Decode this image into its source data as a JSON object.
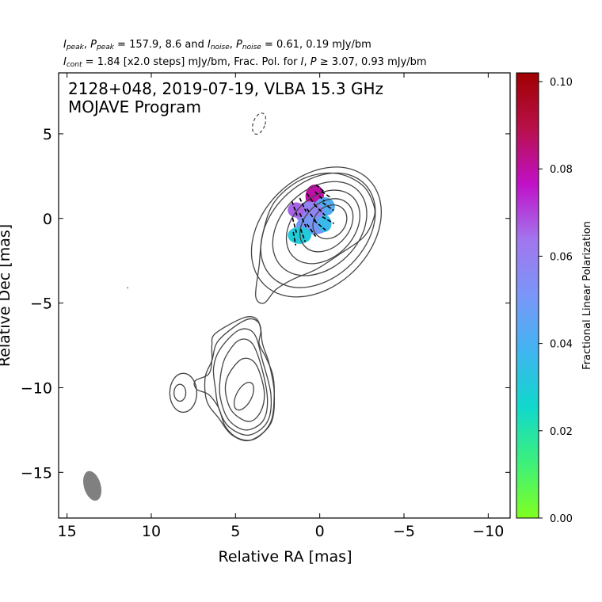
{
  "header": {
    "line1": {
      "i_peak_label": "I",
      "i_peak_sub": "peak",
      "p_peak_label": "P",
      "p_peak_sub": "peak",
      "peak_values": "157.9, 8.6",
      "and_word": "and",
      "i_noise_label": "I",
      "i_noise_sub": "noise",
      "p_noise_label": "P",
      "p_noise_sub": "noise",
      "noise_values": "0.61, 0.19 mJy/bm"
    },
    "line2": {
      "i_cont_label": "I",
      "i_cont_sub": "cont",
      "cont_text": "= 1.84 [x2.0 steps] mJy/bm, Frac. Pol. for",
      "i_label": "I",
      "p_label": "P",
      "thresh_values": "3.07, 0.93 mJy/bm"
    }
  },
  "chart_data": {
    "type": "contour",
    "title": "2128+048, 2019-07-19, VLBA 15.3 GHz",
    "subtitle": "MOJAVE Program",
    "xlabel": "Relative RA [mas]",
    "ylabel": "Relative Dec [mas]",
    "xlim": [
      15.5,
      -11.3
    ],
    "ylim": [
      -17.7,
      8.6
    ],
    "x_ticks": [
      15,
      10,
      5,
      0,
      -5,
      -10
    ],
    "x_tick_labels": [
      "15",
      "10",
      "5",
      "0",
      "−5",
      "−10"
    ],
    "y_ticks": [
      5,
      0,
      -5,
      -10,
      -15
    ],
    "y_tick_labels": [
      "5",
      "0",
      "−5",
      "−10",
      "−15"
    ],
    "colorbar": {
      "label": "Fractional Linear Polarization",
      "range": [
        0.0,
        0.102
      ],
      "ticks": [
        0.0,
        0.02,
        0.04,
        0.06,
        0.08,
        0.1
      ],
      "tick_labels": [
        "0.00",
        "0.02",
        "0.04",
        "0.06",
        "0.08",
        "0.10"
      ],
      "colors": [
        "#80ff20",
        "#3cf07c",
        "#10d8cc",
        "#40b4f0",
        "#7a96f8",
        "#a276ee",
        "#c010c8",
        "#b8104a",
        "#a00000"
      ]
    },
    "beam": {
      "x": 13.5,
      "y": -15.8,
      "major_mas": 1.8,
      "minor_mas": 1.0,
      "pa_deg": -16,
      "color": "#808080"
    },
    "contour_color": "#444444",
    "core_contours": [
      {
        "cx": -0.6,
        "cy": -0.2,
        "rx": 1.1,
        "ry": 0.9,
        "rot": -45
      },
      {
        "cx": -0.4,
        "cy": -0.4,
        "rx": 1.8,
        "ry": 1.3,
        "rot": -45
      },
      {
        "cx": -0.2,
        "cy": -0.5,
        "rx": 2.5,
        "ry": 1.8,
        "rot": -45
      },
      {
        "cx": 0.0,
        "cy": -0.6,
        "rx": 3.2,
        "ry": 2.3,
        "rot": -45
      },
      {
        "cx": 0.1,
        "cy": -0.7,
        "rx": 3.9,
        "ry": 2.8,
        "rot": -45
      },
      {
        "cx": 0.2,
        "cy": -0.8,
        "rx": 4.4,
        "ry": 3.2,
        "rot": -45
      }
    ],
    "core_outer_outline": [
      [
        -3.2,
        0.8
      ],
      [
        -2.6,
        1.9
      ],
      [
        -1.3,
        2.6
      ],
      [
        0.2,
        2.6
      ],
      [
        1.6,
        2.0
      ],
      [
        2.8,
        0.8
      ],
      [
        3.4,
        -1.0
      ],
      [
        3.6,
        -2.8
      ],
      [
        3.8,
        -4.6
      ],
      [
        3.3,
        -5.0
      ],
      [
        2.6,
        -4.2
      ],
      [
        1.6,
        -3.6
      ],
      [
        0.2,
        -3.0
      ],
      [
        -1.2,
        -2.1
      ],
      [
        -2.6,
        -1.1
      ],
      [
        -3.2,
        0.0
      ]
    ],
    "jet_inner_contour": {
      "cx": 4.5,
      "cy": -10.5,
      "rx": 0.9,
      "ry": 0.45,
      "rot": -62
    },
    "jet_contours": [
      [
        [
          5.4,
          -9.2
        ],
        [
          4.6,
          -8.3
        ],
        [
          3.8,
          -8.6
        ],
        [
          3.3,
          -10.2
        ],
        [
          3.5,
          -11.4
        ],
        [
          4.2,
          -12.0
        ],
        [
          5.2,
          -11.4
        ],
        [
          5.6,
          -10.2
        ]
      ],
      [
        [
          5.6,
          -8.2
        ],
        [
          4.8,
          -7.2
        ],
        [
          4.0,
          -7.4
        ],
        [
          3.4,
          -9.0
        ],
        [
          3.1,
          -10.8
        ],
        [
          3.4,
          -12.0
        ],
        [
          4.4,
          -12.5
        ],
        [
          5.4,
          -11.9
        ],
        [
          5.9,
          -10.6
        ],
        [
          5.9,
          -9.4
        ]
      ],
      [
        [
          5.9,
          -7.7
        ],
        [
          4.8,
          -6.6
        ],
        [
          3.9,
          -6.8
        ],
        [
          3.4,
          -8.4
        ],
        [
          2.9,
          -10.4
        ],
        [
          3.1,
          -12.0
        ],
        [
          4.2,
          -12.8
        ],
        [
          5.4,
          -12.3
        ],
        [
          6.0,
          -11.2
        ],
        [
          6.2,
          -10.0
        ],
        [
          6.3,
          -8.8
        ]
      ],
      [
        [
          6.0,
          -7.2
        ],
        [
          4.4,
          -6.0
        ],
        [
          3.6,
          -6.2
        ],
        [
          3.4,
          -7.4
        ],
        [
          3.0,
          -8.6
        ],
        [
          2.7,
          -10.3
        ],
        [
          2.9,
          -12.1
        ],
        [
          4.1,
          -13.1
        ],
        [
          5.2,
          -12.8
        ],
        [
          6.0,
          -11.8
        ],
        [
          6.7,
          -10.8
        ],
        [
          6.8,
          -9.4
        ],
        [
          6.4,
          -8.4
        ]
      ]
    ],
    "jet_outer_outline": [
      [
        6.2,
        -6.8
      ],
      [
        4.6,
        -5.9
      ],
      [
        3.8,
        -5.9
      ],
      [
        3.5,
        -6.6
      ],
      [
        3.6,
        -7.4
      ],
      [
        3.2,
        -8.2
      ],
      [
        2.8,
        -9.2
      ],
      [
        2.7,
        -10.4
      ],
      [
        2.9,
        -12.0
      ],
      [
        3.8,
        -13.0
      ],
      [
        4.8,
        -13.0
      ],
      [
        5.6,
        -12.3
      ],
      [
        6.0,
        -11.2
      ],
      [
        6.6,
        -10.4
      ],
      [
        7.3,
        -10.1
      ],
      [
        7.4,
        -9.6
      ],
      [
        6.6,
        -9.2
      ],
      [
        6.4,
        -8.4
      ],
      [
        6.4,
        -7.5
      ]
    ],
    "side_component": [
      {
        "cx": 8.3,
        "cy": -10.3,
        "rx": 0.35,
        "ry": 0.5,
        "rot": 0
      },
      {
        "cx": 8.1,
        "cy": -10.3,
        "rx": 0.8,
        "ry": 1.15,
        "rot": 0
      }
    ],
    "negative_contour": {
      "cx": 3.6,
      "cy": 5.6,
      "rx": 0.35,
      "ry": 0.65,
      "rot": 20
    },
    "pol_patches": [
      {
        "cx": 0.3,
        "cy": 1.3,
        "rx": 0.55,
        "ry": 0.7,
        "value": 0.08
      },
      {
        "cx": -0.3,
        "cy": 0.7,
        "rx": 0.6,
        "ry": 0.55,
        "value": 0.042
      },
      {
        "cx": 0.6,
        "cy": 0.3,
        "rx": 0.85,
        "ry": 0.7,
        "value": 0.058
      },
      {
        "cx": 1.4,
        "cy": 0.5,
        "rx": 0.5,
        "ry": 0.45,
        "value": 0.066
      },
      {
        "cx": 0.4,
        "cy": -0.4,
        "rx": 1.0,
        "ry": 0.55,
        "value": 0.05
      },
      {
        "cx": 1.2,
        "cy": -1.0,
        "rx": 0.7,
        "ry": 0.5,
        "value": 0.03
      },
      {
        "cx": -0.3,
        "cy": -0.3,
        "rx": 0.4,
        "ry": 0.5,
        "value": 0.036
      }
    ],
    "evpa_sticks": [
      {
        "x": 1.5,
        "y": 0.6,
        "pa": 20,
        "len": 0.9
      },
      {
        "x": 1.0,
        "y": 0.8,
        "pa": 25,
        "len": 0.9
      },
      {
        "x": 0.5,
        "y": 1.1,
        "pa": 35,
        "len": 0.9
      },
      {
        "x": 0.0,
        "y": 1.3,
        "pa": 45,
        "len": 0.8
      },
      {
        "x": 1.5,
        "y": -0.4,
        "pa": 15,
        "len": 0.9
      },
      {
        "x": 1.0,
        "y": -0.1,
        "pa": 25,
        "len": 0.9
      },
      {
        "x": 0.5,
        "y": 0.2,
        "pa": 35,
        "len": 0.9
      },
      {
        "x": 0.0,
        "y": 0.5,
        "pa": 45,
        "len": 0.9
      },
      {
        "x": -0.5,
        "y": 0.7,
        "pa": 55,
        "len": 0.8
      },
      {
        "x": 1.5,
        "y": -1.2,
        "pa": 10,
        "len": 0.8
      },
      {
        "x": 1.0,
        "y": -1.0,
        "pa": 20,
        "len": 0.8
      },
      {
        "x": 0.5,
        "y": -0.7,
        "pa": 35,
        "len": 0.9
      },
      {
        "x": 0.0,
        "y": -0.4,
        "pa": 50,
        "len": 0.9
      },
      {
        "x": -0.5,
        "y": -0.1,
        "pa": 60,
        "len": 0.8
      },
      {
        "x": 0.0,
        "y": 1.8,
        "pa": 50,
        "len": 0.6
      },
      {
        "x": -0.4,
        "y": 1.4,
        "pa": 55,
        "len": 0.7
      }
    ],
    "stray_point": {
      "x": 11.4,
      "y": -4.1
    }
  }
}
